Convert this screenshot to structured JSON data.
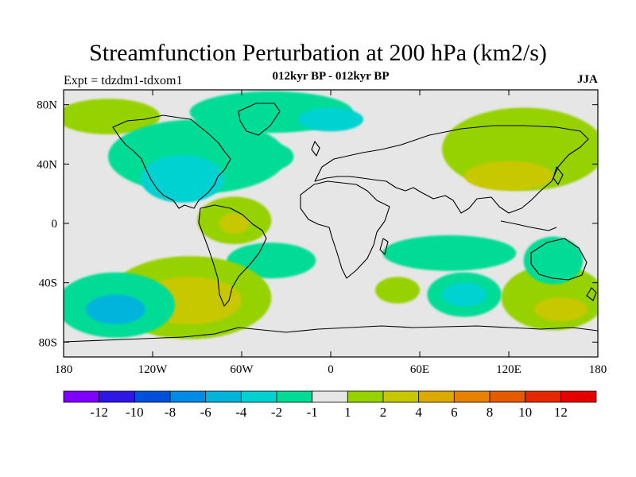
{
  "title": "Streamfunction Perturbation at 200 hPa (km2/s)",
  "experiment": "Expt = tdzdm1-tdxom1",
  "subtitle": "012kyr BP - 012kyr BP",
  "season": "JJA",
  "map": {
    "lat_ticks": [
      {
        "value": 80,
        "label": "80N"
      },
      {
        "value": 40,
        "label": "40N"
      },
      {
        "value": 0,
        "label": "0"
      },
      {
        "value": -40,
        "label": "40S"
      },
      {
        "value": -80,
        "label": "80S"
      }
    ],
    "lon_ticks": [
      {
        "value": -180,
        "label": "180"
      },
      {
        "value": -120,
        "label": "120W"
      },
      {
        "value": -60,
        "label": "60W"
      },
      {
        "value": 0,
        "label": "0"
      },
      {
        "value": 60,
        "label": "60E"
      },
      {
        "value": 120,
        "label": "120E"
      },
      {
        "value": 180,
        "label": "180"
      }
    ],
    "background_color": "#e6e6e6",
    "regions": [
      {
        "name": "north-pacific-positive",
        "level": 2,
        "lon": -150,
        "lat": 72,
        "rlon": 35,
        "rlat": 12
      },
      {
        "name": "north-america-negative",
        "level": -1,
        "lon": -90,
        "lat": 45,
        "rlon": 60,
        "rlat": 25
      },
      {
        "name": "central-us-negative-core",
        "level": -2,
        "lon": -100,
        "lat": 30,
        "rlon": 28,
        "rlat": 16
      },
      {
        "name": "arctic-canada-negative",
        "level": -1,
        "lon": -40,
        "lat": 75,
        "rlon": 55,
        "rlat": 14
      },
      {
        "name": "greenland-negative-core",
        "level": -2,
        "lon": 0,
        "lat": 70,
        "rlon": 22,
        "rlat": 8
      },
      {
        "name": "south-america-positive",
        "level": 2,
        "lon": -65,
        "lat": 2,
        "rlon": 25,
        "rlat": 16
      },
      {
        "name": "south-america-core",
        "level": 4,
        "lon": -65,
        "lat": 0,
        "rlon": 10,
        "rlat": 7
      },
      {
        "name": "south-atlantic-negative",
        "level": -1,
        "lon": -40,
        "lat": -25,
        "rlon": 30,
        "rlat": 12
      },
      {
        "name": "southeast-pacific-positive",
        "level": 2,
        "lon": -95,
        "lat": -50,
        "rlon": 55,
        "rlat": 28
      },
      {
        "name": "southeast-pacific-core",
        "level": 4,
        "lon": -95,
        "lat": -52,
        "rlon": 35,
        "rlat": 16
      },
      {
        "name": "south-pacific-negative",
        "level": -1,
        "lon": -145,
        "lat": -55,
        "rlon": 40,
        "rlat": 22
      },
      {
        "name": "south-pacific-core",
        "level": -4,
        "lon": -145,
        "lat": -58,
        "rlon": 20,
        "rlat": 10
      },
      {
        "name": "indian-ocean-negative",
        "level": -1,
        "lon": 80,
        "lat": -20,
        "rlon": 45,
        "rlat": 12
      },
      {
        "name": "asia-positive",
        "level": 2,
        "lon": 130,
        "lat": 50,
        "rlon": 55,
        "rlat": 28
      },
      {
        "name": "asia-core",
        "level": 4,
        "lon": 120,
        "lat": 32,
        "rlon": 30,
        "rlat": 10
      },
      {
        "name": "south-atlantic-positive",
        "level": 2,
        "lon": 45,
        "lat": -45,
        "rlon": 15,
        "rlat": 9
      },
      {
        "name": "south-indian-negative",
        "level": -1,
        "lon": 90,
        "lat": -48,
        "rlon": 25,
        "rlat": 15
      },
      {
        "name": "south-indian-core",
        "level": -2,
        "lon": 90,
        "lat": -48,
        "rlon": 15,
        "rlat": 8
      },
      {
        "name": "australia-positive",
        "level": 2,
        "lon": 150,
        "lat": -50,
        "rlon": 35,
        "rlat": 22
      },
      {
        "name": "australia-core",
        "level": 4,
        "lon": 155,
        "lat": -58,
        "rlon": 18,
        "rlat": 8
      },
      {
        "name": "australia-negative",
        "level": -1,
        "lon": 150,
        "lat": -25,
        "rlon": 20,
        "rlat": 16
      },
      {
        "name": "north-atlantic-negative",
        "level": -1,
        "lon": -40,
        "lat": 45,
        "rlon": 15,
        "rlat": 9
      }
    ]
  },
  "colorbar": {
    "colors": [
      "#7f00ff",
      "#2e16e6",
      "#0050dc",
      "#008ce6",
      "#00b4dc",
      "#00d2d2",
      "#00dc96",
      "#e6e6e6",
      "#96d200",
      "#c8c800",
      "#dcaa00",
      "#e68200",
      "#e65a00",
      "#e62800",
      "#e60000"
    ],
    "labels": [
      "-12",
      "-10",
      "-8",
      "-6",
      "-4",
      "-2",
      "-1",
      "1",
      "2",
      "4",
      "6",
      "8",
      "10",
      "12"
    ]
  }
}
